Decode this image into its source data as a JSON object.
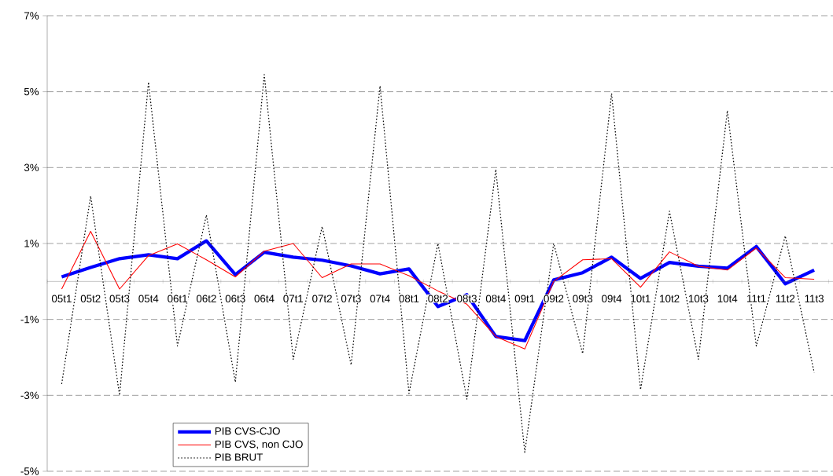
{
  "chart_data": {
    "type": "line",
    "categories": [
      "05t1",
      "05t2",
      "05t3",
      "05t4",
      "06t1",
      "06t2",
      "06t3",
      "06t4",
      "07t1",
      "07t2",
      "07t3",
      "07t4",
      "08t1",
      "08t2",
      "08t3",
      "08t4",
      "09t1",
      "09t2",
      "09t3",
      "09t4",
      "10t1",
      "10t2",
      "10t3",
      "10t4",
      "11t1",
      "11t2",
      "11t3"
    ],
    "series": [
      {
        "name": "PIB CVS-CJO",
        "color": "#0000ff",
        "line_style": "solid",
        "values": [
          0.12,
          0.37,
          0.6,
          0.7,
          0.6,
          1.07,
          0.18,
          0.77,
          0.64,
          0.56,
          0.41,
          0.2,
          0.33,
          -0.66,
          -0.35,
          -1.45,
          -1.56,
          0.04,
          0.23,
          0.64,
          0.08,
          0.5,
          0.4,
          0.35,
          0.92,
          -0.06,
          0.3
        ]
      },
      {
        "name": "PIB CVS, non CJO",
        "color": "#ff0000",
        "line_style": "solid",
        "values": [
          -0.2,
          1.32,
          -0.2,
          0.68,
          0.99,
          0.57,
          0.12,
          0.8,
          1.0,
          0.1,
          0.46,
          0.46,
          0.15,
          -0.25,
          -0.6,
          -1.45,
          -1.78,
          0.0,
          0.57,
          0.6,
          -0.15,
          0.78,
          0.4,
          0.3,
          0.88,
          0.1,
          0.06
        ]
      },
      {
        "name": "PIB BRUT",
        "color": "#000000",
        "line_style": "dotted",
        "values": [
          -2.7,
          2.25,
          -3.0,
          5.25,
          -1.7,
          1.75,
          -2.65,
          5.45,
          -2.05,
          1.45,
          -2.2,
          5.15,
          -2.95,
          1.0,
          -3.1,
          2.95,
          -4.5,
          1.0,
          -1.9,
          4.95,
          -2.85,
          1.85,
          -2.05,
          4.5,
          -1.7,
          1.2,
          -2.4
        ]
      }
    ],
    "ylim": [
      -5,
      7
    ],
    "yticks": [
      {
        "value": -5,
        "label": "-5%"
      },
      {
        "value": -3,
        "label": "-3%"
      },
      {
        "value": -1,
        "label": "-1%"
      },
      {
        "value": 1,
        "label": "1%"
      },
      {
        "value": 3,
        "label": "3%"
      },
      {
        "value": 5,
        "label": "5%"
      },
      {
        "value": 7,
        "label": "7%"
      }
    ],
    "grid": "y",
    "legend": "bottom left"
  }
}
